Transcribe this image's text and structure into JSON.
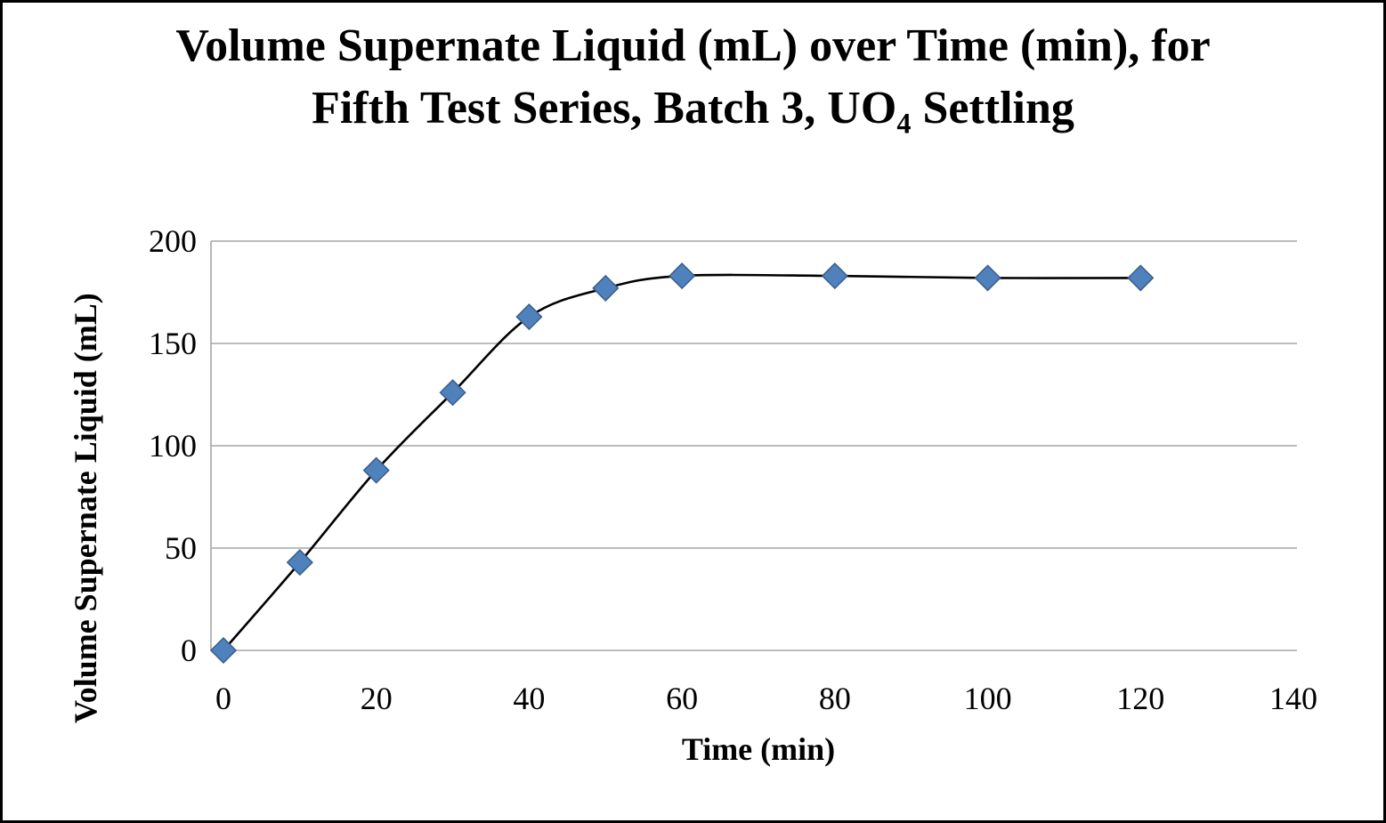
{
  "title": {
    "pre": "Volume Supernate Liquid (mL) over Time (min), for Fifth Test Series, Batch 3, UO",
    "sub": "4",
    "post": " Settling"
  },
  "chart_data": {
    "type": "scatter",
    "title": "Volume Supernate Liquid (mL) over Time (min), for Fifth Test Series, Batch 3, UO4 Settling",
    "x": [
      0,
      10,
      20,
      30,
      40,
      50,
      60,
      80,
      100,
      120
    ],
    "y": [
      0,
      43,
      88,
      126,
      163,
      177,
      183,
      183,
      182,
      182
    ],
    "xlabel": "Time (min)",
    "ylabel": "Volume Supernate Liquid (mL)",
    "xlim": [
      0,
      140
    ],
    "ylim": [
      0,
      200
    ],
    "x_ticks": [
      0,
      20,
      40,
      60,
      80,
      100,
      120,
      140
    ],
    "y_ticks": [
      0,
      50,
      100,
      150,
      200
    ],
    "grid": "horizontal-only",
    "legend": "none",
    "line_style": "smooth",
    "line_color": "#000000",
    "marker": "diamond",
    "marker_color": "#4F81BD",
    "marker_edge_color": "#385D8A",
    "gridline_color": "#A6A6A6"
  }
}
